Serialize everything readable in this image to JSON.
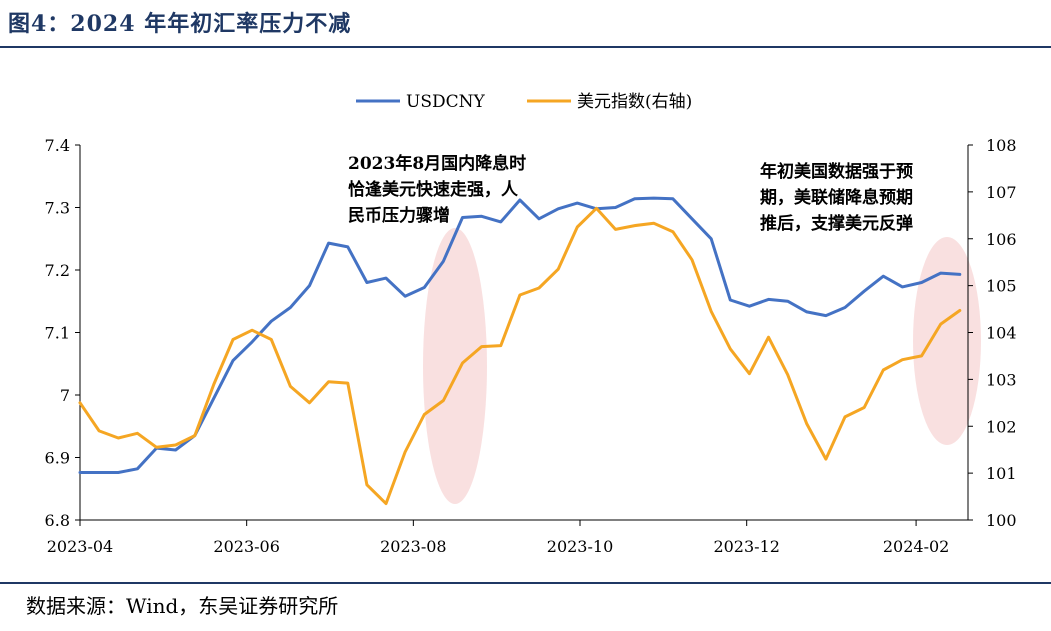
{
  "figure": {
    "title": "图4：2024 年年初汇率压力不减",
    "source": "数据来源：Wind，东吴证券研究所"
  },
  "colors": {
    "title": "#1f3864",
    "usdcny": "#4472c4",
    "dxy": "#f5a623",
    "highlight": "#f4c7c7"
  },
  "chart_data": {
    "type": "line",
    "x_labels": [
      "2023-04",
      "2023-06",
      "2023-08",
      "2023-10",
      "2023-12",
      "2024-02"
    ],
    "y_left": {
      "ticks": [
        "6.8",
        "6.9",
        "7",
        "7.1",
        "7.2",
        "7.3",
        "7.4"
      ],
      "ylim": [
        6.8,
        7.4
      ]
    },
    "y_right": {
      "ticks": [
        "100",
        "101",
        "102",
        "103",
        "104",
        "105",
        "106",
        "107",
        "108"
      ],
      "ylim": [
        100,
        108
      ]
    },
    "legend": {
      "placement": "top-center"
    },
    "series": [
      {
        "name": "USDCNY",
        "axis": "left",
        "color": "#4472c4",
        "x": [
          "2023-04-01",
          "2023-04-08",
          "2023-04-15",
          "2023-04-22",
          "2023-04-29",
          "2023-05-06",
          "2023-05-13",
          "2023-05-20",
          "2023-05-27",
          "2023-06-03",
          "2023-06-10",
          "2023-06-17",
          "2023-06-24",
          "2023-07-01",
          "2023-07-08",
          "2023-07-15",
          "2023-07-22",
          "2023-07-29",
          "2023-08-05",
          "2023-08-12",
          "2023-08-19",
          "2023-08-26",
          "2023-09-02",
          "2023-09-09",
          "2023-09-16",
          "2023-09-23",
          "2023-09-30",
          "2023-10-07",
          "2023-10-14",
          "2023-10-21",
          "2023-10-28",
          "2023-11-04",
          "2023-11-11",
          "2023-11-18",
          "2023-11-25",
          "2023-12-02",
          "2023-12-09",
          "2023-12-16",
          "2023-12-23",
          "2023-12-30",
          "2024-01-06",
          "2024-01-13",
          "2024-01-20",
          "2024-01-27",
          "2024-02-03",
          "2024-02-10",
          "2024-02-17"
        ],
        "values": [
          6.876,
          6.876,
          6.876,
          6.882,
          6.915,
          6.912,
          6.935,
          6.995,
          7.055,
          7.085,
          7.118,
          7.14,
          7.175,
          7.243,
          7.237,
          7.18,
          7.187,
          7.158,
          7.172,
          7.214,
          7.284,
          7.286,
          7.277,
          7.312,
          7.282,
          7.298,
          7.307,
          7.298,
          7.3,
          7.314,
          7.315,
          7.314,
          7.282,
          7.25,
          7.152,
          7.142,
          7.153,
          7.15,
          7.133,
          7.127,
          7.14,
          7.166,
          7.19,
          7.173,
          7.18,
          7.195,
          7.193
        ]
      },
      {
        "name": "美元指数(右轴)",
        "axis": "right",
        "color": "#f5a623",
        "x": [
          "2023-04-01",
          "2023-04-08",
          "2023-04-15",
          "2023-04-22",
          "2023-04-29",
          "2023-05-06",
          "2023-05-13",
          "2023-05-20",
          "2023-05-27",
          "2023-06-03",
          "2023-06-10",
          "2023-06-17",
          "2023-06-24",
          "2023-07-01",
          "2023-07-08",
          "2023-07-15",
          "2023-07-22",
          "2023-07-29",
          "2023-08-05",
          "2023-08-12",
          "2023-08-19",
          "2023-08-26",
          "2023-09-02",
          "2023-09-09",
          "2023-09-16",
          "2023-09-23",
          "2023-09-30",
          "2023-10-07",
          "2023-10-14",
          "2023-10-21",
          "2023-10-28",
          "2023-11-04",
          "2023-11-11",
          "2023-11-18",
          "2023-11-25",
          "2023-12-02",
          "2023-12-09",
          "2023-12-16",
          "2023-12-23",
          "2023-12-30",
          "2024-01-06",
          "2024-01-13",
          "2024-01-20",
          "2024-01-27",
          "2024-02-03",
          "2024-02-10",
          "2024-02-17"
        ],
        "values": [
          102.5,
          101.9,
          101.75,
          101.85,
          101.55,
          101.6,
          101.8,
          102.9,
          103.85,
          104.05,
          103.85,
          102.85,
          102.5,
          102.95,
          102.92,
          100.75,
          100.35,
          101.45,
          102.25,
          102.55,
          103.35,
          103.7,
          103.72,
          104.8,
          104.95,
          105.35,
          106.25,
          106.65,
          106.2,
          106.28,
          106.33,
          106.15,
          105.55,
          104.45,
          103.65,
          103.12,
          103.9,
          103.1,
          102.05,
          101.3,
          102.2,
          102.4,
          103.2,
          103.42,
          103.5,
          104.18,
          104.47
        ]
      }
    ],
    "annotations": [
      {
        "lines": [
          "2023年8月国内降息时",
          "恰逢美元快速走强，人",
          "民币压力骤增"
        ]
      },
      {
        "lines": [
          "年初美国数据强于预",
          "期，美联储降息预期",
          "推后，支撑美元反弹"
        ]
      }
    ]
  }
}
